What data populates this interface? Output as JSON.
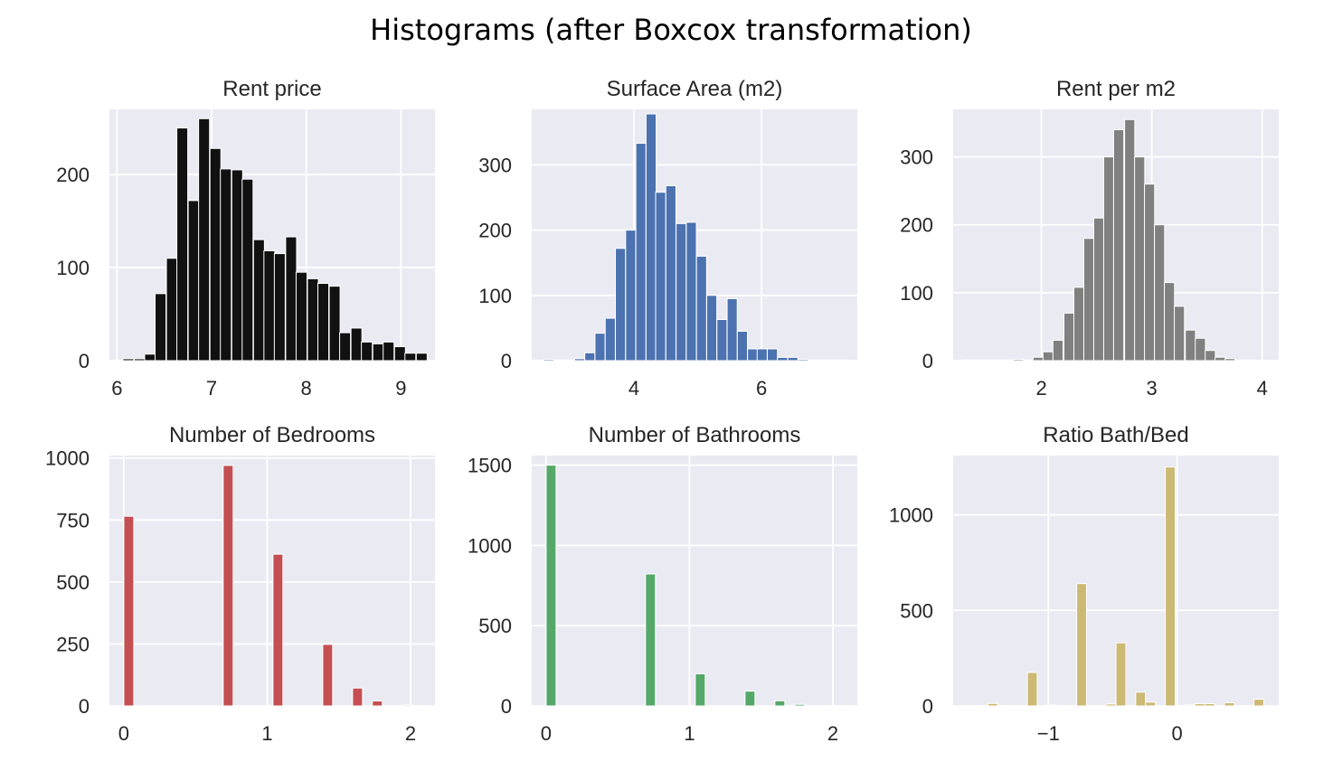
{
  "title": "Histograms (after Boxcox transformation)",
  "chart_data": [
    {
      "type": "bar",
      "title": "Rent price",
      "color": "#111111",
      "xlim": [
        5.92,
        9.36
      ],
      "ylim": [
        0,
        270
      ],
      "xticks": [
        6,
        7,
        8,
        9
      ],
      "yticks": [
        0,
        100,
        200
      ],
      "bin_width": 0.115,
      "bins": [
        [
          6.12,
          2
        ],
        [
          6.24,
          2
        ],
        [
          6.35,
          7
        ],
        [
          6.46,
          72
        ],
        [
          6.58,
          110
        ],
        [
          6.69,
          250
        ],
        [
          6.81,
          172
        ],
        [
          6.92,
          260
        ],
        [
          7.04,
          228
        ],
        [
          7.15,
          206
        ],
        [
          7.27,
          205
        ],
        [
          7.38,
          195
        ],
        [
          7.5,
          130
        ],
        [
          7.61,
          118
        ],
        [
          7.72,
          115
        ],
        [
          7.84,
          133
        ],
        [
          7.95,
          95
        ],
        [
          8.07,
          88
        ],
        [
          8.18,
          83
        ],
        [
          8.3,
          80
        ],
        [
          8.41,
          30
        ],
        [
          8.53,
          35
        ],
        [
          8.64,
          20
        ],
        [
          8.76,
          18
        ],
        [
          8.87,
          20
        ],
        [
          8.99,
          15
        ],
        [
          9.1,
          8
        ],
        [
          9.22,
          8
        ],
        [
          9.33,
          0
        ]
      ]
    },
    {
      "type": "bar",
      "title": "Surface Area (m2)",
      "color": "#4c72b0",
      "xlim": [
        2.4,
        7.5
      ],
      "ylim": [
        0,
        385
      ],
      "xticks": [
        4,
        6
      ],
      "yticks": [
        0,
        100,
        200,
        300
      ],
      "bin_width": 0.158,
      "bins": [
        [
          2.67,
          2
        ],
        [
          2.83,
          1
        ],
        [
          2.99,
          1
        ],
        [
          3.15,
          3
        ],
        [
          3.31,
          12
        ],
        [
          3.47,
          42
        ],
        [
          3.63,
          65
        ],
        [
          3.79,
          172
        ],
        [
          3.95,
          200
        ],
        [
          4.11,
          333
        ],
        [
          4.27,
          378
        ],
        [
          4.42,
          258
        ],
        [
          4.58,
          268
        ],
        [
          4.74,
          210
        ],
        [
          4.9,
          212
        ],
        [
          5.06,
          160
        ],
        [
          5.22,
          100
        ],
        [
          5.38,
          63
        ],
        [
          5.54,
          95
        ],
        [
          5.7,
          45
        ],
        [
          5.86,
          18
        ],
        [
          6.01,
          18
        ],
        [
          6.17,
          18
        ],
        [
          6.33,
          5
        ],
        [
          6.49,
          5
        ],
        [
          6.65,
          2
        ],
        [
          6.81,
          1
        ],
        [
          6.97,
          1
        ],
        [
          7.13,
          1
        ],
        [
          7.29,
          1
        ]
      ]
    },
    {
      "type": "bar",
      "title": "Rent per m2",
      "color": "#808080",
      "xlim": [
        1.2,
        4.15
      ],
      "ylim": [
        0,
        370
      ],
      "xticks": [
        2,
        3,
        4
      ],
      "yticks": [
        0,
        100,
        200,
        300
      ],
      "bin_width": 0.092,
      "bins": [
        [
          1.33,
          1
        ],
        [
          1.42,
          1
        ],
        [
          1.51,
          1
        ],
        [
          1.6,
          1
        ],
        [
          1.7,
          1
        ],
        [
          1.79,
          2
        ],
        [
          1.88,
          1
        ],
        [
          1.97,
          5
        ],
        [
          2.06,
          13
        ],
        [
          2.15,
          30
        ],
        [
          2.25,
          70
        ],
        [
          2.34,
          108
        ],
        [
          2.43,
          180
        ],
        [
          2.52,
          210
        ],
        [
          2.61,
          300
        ],
        [
          2.7,
          340
        ],
        [
          2.8,
          355
        ],
        [
          2.89,
          300
        ],
        [
          2.98,
          260
        ],
        [
          3.07,
          200
        ],
        [
          3.16,
          115
        ],
        [
          3.25,
          80
        ],
        [
          3.35,
          45
        ],
        [
          3.44,
          33
        ],
        [
          3.53,
          15
        ],
        [
          3.62,
          5
        ],
        [
          3.71,
          3
        ],
        [
          3.8,
          1
        ],
        [
          3.9,
          1
        ],
        [
          3.99,
          0
        ]
      ]
    },
    {
      "type": "bar",
      "title": "Number of Bedrooms",
      "color": "#c44e52",
      "xlim": [
        -0.1,
        2.17
      ],
      "ylim": [
        0,
        1010
      ],
      "xticks": [
        0,
        1,
        2
      ],
      "yticks": [
        0,
        250,
        500,
        750,
        1000
      ],
      "yticklabels": [
        "0",
        "250",
        "500",
        "750",
        "1000"
      ],
      "bin_width": 0.069,
      "bins": [
        [
          0.035,
          765
        ],
        [
          0.104,
          0
        ],
        [
          0.174,
          0
        ],
        [
          0.243,
          0
        ],
        [
          0.312,
          0
        ],
        [
          0.382,
          0
        ],
        [
          0.451,
          0
        ],
        [
          0.52,
          0
        ],
        [
          0.59,
          0
        ],
        [
          0.659,
          0
        ],
        [
          0.728,
          970
        ],
        [
          0.798,
          0
        ],
        [
          0.867,
          0
        ],
        [
          0.936,
          0
        ],
        [
          1.006,
          0
        ],
        [
          1.075,
          612
        ],
        [
          1.144,
          0
        ],
        [
          1.214,
          0
        ],
        [
          1.283,
          0
        ],
        [
          1.352,
          0
        ],
        [
          1.422,
          248
        ],
        [
          1.491,
          0
        ],
        [
          1.56,
          0
        ],
        [
          1.63,
          72
        ],
        [
          1.699,
          0
        ],
        [
          1.768,
          20
        ],
        [
          1.838,
          0
        ],
        [
          1.907,
          0
        ],
        [
          1.976,
          4
        ],
        [
          2.046,
          1
        ]
      ]
    },
    {
      "type": "bar",
      "title": "Number of Bathrooms",
      "color": "#55a868",
      "xlim": [
        -0.1,
        2.17
      ],
      "ylim": [
        0,
        1560
      ],
      "xticks": [
        0,
        1,
        2
      ],
      "yticks": [
        0,
        500,
        1000,
        1500
      ],
      "yticklabels": [
        "0",
        "500",
        "1000",
        "1500"
      ],
      "bin_width": 0.069,
      "bins": [
        [
          0.035,
          1500
        ],
        [
          0.104,
          0
        ],
        [
          0.174,
          0
        ],
        [
          0.243,
          0
        ],
        [
          0.312,
          0
        ],
        [
          0.382,
          0
        ],
        [
          0.451,
          0
        ],
        [
          0.52,
          0
        ],
        [
          0.59,
          0
        ],
        [
          0.659,
          0
        ],
        [
          0.728,
          822
        ],
        [
          0.798,
          0
        ],
        [
          0.867,
          0
        ],
        [
          0.936,
          0
        ],
        [
          1.006,
          0
        ],
        [
          1.075,
          200
        ],
        [
          1.144,
          0
        ],
        [
          1.214,
          0
        ],
        [
          1.283,
          0
        ],
        [
          1.352,
          0
        ],
        [
          1.422,
          92
        ],
        [
          1.491,
          0
        ],
        [
          1.56,
          0
        ],
        [
          1.63,
          32
        ],
        [
          1.699,
          0
        ],
        [
          1.768,
          10
        ],
        [
          1.838,
          0
        ],
        [
          1.907,
          0
        ],
        [
          1.976,
          3
        ],
        [
          2.046,
          1
        ]
      ]
    },
    {
      "type": "bar",
      "title": "Ratio Bath/Bed",
      "color": "#ccb974",
      "xlim": [
        -1.74,
        0.79
      ],
      "ylim": [
        0,
        1310
      ],
      "xticks": [
        -1,
        0
      ],
      "yticks": [
        0,
        500,
        1000
      ],
      "yticklabels": [
        "0",
        "500",
        "1000"
      ],
      "xticklabels": [
        "−1",
        "0"
      ],
      "bin_width": 0.0766,
      "bins": [
        [
          -1.66,
          1
        ],
        [
          -1.585,
          1
        ],
        [
          -1.508,
          1
        ],
        [
          -1.432,
          13
        ],
        [
          -1.355,
          1
        ],
        [
          -1.279,
          1
        ],
        [
          -1.202,
          1
        ],
        [
          -1.125,
          175
        ],
        [
          -1.049,
          1
        ],
        [
          -0.972,
          5
        ],
        [
          -0.896,
          1
        ],
        [
          -0.819,
          1
        ],
        [
          -0.742,
          640
        ],
        [
          -0.666,
          1
        ],
        [
          -0.589,
          1
        ],
        [
          -0.513,
          10
        ],
        [
          -0.436,
          330
        ],
        [
          -0.359,
          1
        ],
        [
          -0.283,
          72
        ],
        [
          -0.206,
          20
        ],
        [
          -0.13,
          1
        ],
        [
          -0.053,
          1250
        ],
        [
          0.024,
          1
        ],
        [
          0.1,
          5
        ],
        [
          0.177,
          12
        ],
        [
          0.253,
          12
        ],
        [
          0.33,
          1
        ],
        [
          0.407,
          17
        ],
        [
          0.483,
          1
        ],
        [
          0.56,
          1
        ],
        [
          0.636,
          35
        ]
      ]
    }
  ]
}
